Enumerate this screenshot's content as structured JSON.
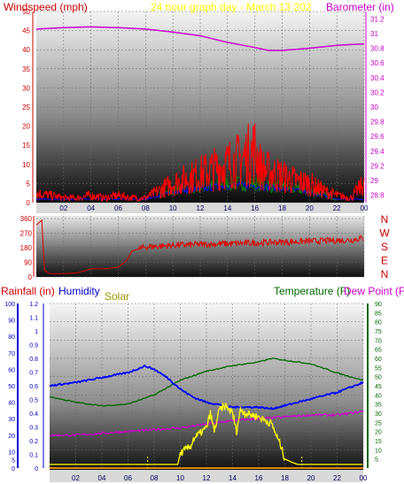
{
  "colors": {
    "windspeed": "#ff0000",
    "gust": "#ff0000",
    "wind_avg": "#0000ff",
    "wind_green": "#008000",
    "barometer": "#cc00cc",
    "direction": "#dd0000",
    "rainfall": "#0000ff",
    "humidity": "#0000ff",
    "solar": "#ffff00",
    "temperature": "#006600",
    "dewpoint": "#cc00cc",
    "title": "#ffff00",
    "frame_dark": "#000000",
    "frame_light": "#ffffff"
  },
  "chart_data": [
    {
      "type": "line",
      "name": "wind-baro",
      "title": "24 hour graph day - March 13 202",
      "left_label": "Windspeed (mph)",
      "right_label": "Barometer (in)",
      "x_ticks": [
        "02",
        "04",
        "06",
        "08",
        "10",
        "12",
        "14",
        "16",
        "18",
        "20",
        "22",
        "00"
      ],
      "y_left_ticks": [
        "0",
        "5",
        "10",
        "15",
        "20",
        "25",
        "30",
        "35",
        "40",
        "45",
        "50"
      ],
      "y_left_range": [
        0,
        50
      ],
      "y_right_ticks": [
        "28.8",
        "29",
        "29.2",
        "29.4",
        "29.6",
        "29.8",
        "30",
        "30.2",
        "30.4",
        "30.6",
        "30.8",
        "31",
        "31.2"
      ],
      "y_right_range": [
        28.7,
        31.3
      ],
      "x_range": [
        0,
        24
      ],
      "barometer": [
        [
          0,
          31.06
        ],
        [
          2,
          31.08
        ],
        [
          4,
          31.09
        ],
        [
          6,
          31.08
        ],
        [
          8,
          31.06
        ],
        [
          10,
          31.02
        ],
        [
          12,
          30.97
        ],
        [
          14,
          30.88
        ],
        [
          16,
          30.81
        ],
        [
          17,
          30.77
        ],
        [
          18,
          30.77
        ],
        [
          20,
          30.8
        ],
        [
          22,
          30.84
        ],
        [
          24,
          30.86
        ]
      ],
      "windspeed_envelope": [
        [
          0,
          4
        ],
        [
          1,
          3
        ],
        [
          2,
          2
        ],
        [
          3,
          2
        ],
        [
          4,
          3
        ],
        [
          5,
          2
        ],
        [
          6,
          3
        ],
        [
          7,
          2
        ],
        [
          8,
          2
        ],
        [
          9,
          5
        ],
        [
          10,
          8
        ],
        [
          11,
          10
        ],
        [
          12,
          12
        ],
        [
          13,
          14
        ],
        [
          14,
          16
        ],
        [
          15,
          18
        ],
        [
          16,
          22
        ],
        [
          16.5,
          14
        ],
        [
          17,
          13
        ],
        [
          18,
          11
        ],
        [
          19,
          9
        ],
        [
          20,
          8
        ],
        [
          21,
          5
        ],
        [
          22,
          3
        ],
        [
          23,
          2
        ],
        [
          24,
          8
        ]
      ],
      "wind_avg_envelope": [
        [
          0,
          1
        ],
        [
          8,
          1
        ],
        [
          10,
          3
        ],
        [
          12,
          4
        ],
        [
          14,
          5
        ],
        [
          16,
          5
        ],
        [
          18,
          4
        ],
        [
          20,
          3
        ],
        [
          22,
          1
        ],
        [
          24,
          1
        ]
      ]
    },
    {
      "type": "line",
      "name": "wind-direction",
      "y_ticks": [
        "360",
        "270",
        "180",
        "90",
        "0"
      ],
      "y_range": [
        0,
        360
      ],
      "compass_labels": [
        "N",
        "W",
        "S",
        "E",
        "N"
      ],
      "direction": [
        [
          0,
          320
        ],
        [
          0.4,
          350
        ],
        [
          0.6,
          40
        ],
        [
          1,
          20
        ],
        [
          2,
          20
        ],
        [
          3,
          25
        ],
        [
          4,
          50
        ],
        [
          5,
          50
        ],
        [
          6,
          60
        ],
        [
          6.6,
          100
        ],
        [
          7,
          160
        ],
        [
          8,
          185
        ],
        [
          10,
          195
        ],
        [
          12,
          200
        ],
        [
          14,
          205
        ],
        [
          16,
          210
        ],
        [
          18,
          215
        ],
        [
          20,
          220
        ],
        [
          22,
          225
        ],
        [
          23,
          228
        ],
        [
          24,
          240
        ]
      ]
    },
    {
      "type": "line",
      "name": "rain-humidity-solar-temp",
      "labels": {
        "rainfall": "Rainfall (in)",
        "humidity": "Humidity",
        "solar": "Solar",
        "temperature": "Temperature (F)",
        "dewpoint": "Dew Point (F)"
      },
      "x_ticks": [
        "02",
        "04",
        "06",
        "08",
        "10",
        "12",
        "14",
        "16",
        "18",
        "20",
        "22",
        "00"
      ],
      "y_rain_ticks": [
        "0",
        "0.1",
        "0.2",
        "0.3",
        "0.4",
        "0.5",
        "0.6",
        "0.7",
        "0.8",
        "0.9",
        "1",
        "1.1",
        "1.2"
      ],
      "y_rain_range": [
        0,
        1.2
      ],
      "y_humidity_ticks": [
        "0",
        "5",
        "10",
        "20",
        "30",
        "40",
        "50",
        "60",
        "70",
        "80",
        "90",
        "100"
      ],
      "y_humidity_range": [
        0,
        100
      ],
      "y_temp_ticks": [
        "5",
        "10",
        "15",
        "20",
        "25",
        "30",
        "35",
        "40",
        "45",
        "50",
        "55",
        "60",
        "65",
        "70",
        "75",
        "80",
        "85",
        "90"
      ],
      "y_temp_range": [
        0,
        90
      ],
      "humidity": [
        [
          0,
          50
        ],
        [
          2,
          52
        ],
        [
          4,
          55
        ],
        [
          6,
          58
        ],
        [
          7.3,
          62
        ],
        [
          8,
          60
        ],
        [
          9,
          55
        ],
        [
          10,
          48
        ],
        [
          11,
          43
        ],
        [
          12,
          40
        ],
        [
          14,
          37
        ],
        [
          16,
          37
        ],
        [
          17,
          36
        ],
        [
          18,
          38
        ],
        [
          20,
          42
        ],
        [
          22,
          46
        ],
        [
          24,
          52
        ]
      ],
      "temperature": [
        [
          0,
          39
        ],
        [
          2,
          36
        ],
        [
          4,
          34
        ],
        [
          6,
          35
        ],
        [
          8,
          40
        ],
        [
          10,
          48
        ],
        [
          12,
          53
        ],
        [
          14,
          56
        ],
        [
          16,
          58
        ],
        [
          17,
          60
        ],
        [
          18,
          59
        ],
        [
          20,
          57
        ],
        [
          22,
          52
        ],
        [
          24,
          48
        ]
      ],
      "dewpoint": [
        [
          0,
          18
        ],
        [
          2,
          18
        ],
        [
          4,
          19
        ],
        [
          6,
          20
        ],
        [
          8,
          21
        ],
        [
          10,
          22
        ],
        [
          12,
          24
        ],
        [
          14,
          26
        ],
        [
          16,
          27
        ],
        [
          18,
          28
        ],
        [
          20,
          29
        ],
        [
          22,
          29
        ],
        [
          24,
          31
        ]
      ],
      "solar_temp_scale": [
        [
          0,
          2
        ],
        [
          9.8,
          2
        ],
        [
          10,
          8
        ],
        [
          10.8,
          12
        ],
        [
          11,
          16
        ],
        [
          12,
          22
        ],
        [
          12.3,
          30
        ],
        [
          12.6,
          20
        ],
        [
          13,
          32
        ],
        [
          13.5,
          34
        ],
        [
          14,
          30
        ],
        [
          14.3,
          20
        ],
        [
          14.6,
          32
        ],
        [
          15,
          30
        ],
        [
          16,
          28
        ],
        [
          17,
          24
        ],
        [
          17.7,
          12
        ],
        [
          18,
          5
        ],
        [
          18.6,
          3
        ],
        [
          19,
          2
        ],
        [
          24,
          2
        ]
      ],
      "rainfall": [
        [
          0,
          0
        ],
        [
          24,
          0
        ]
      ],
      "solar_markers": [
        7.5,
        19.3
      ]
    }
  ]
}
